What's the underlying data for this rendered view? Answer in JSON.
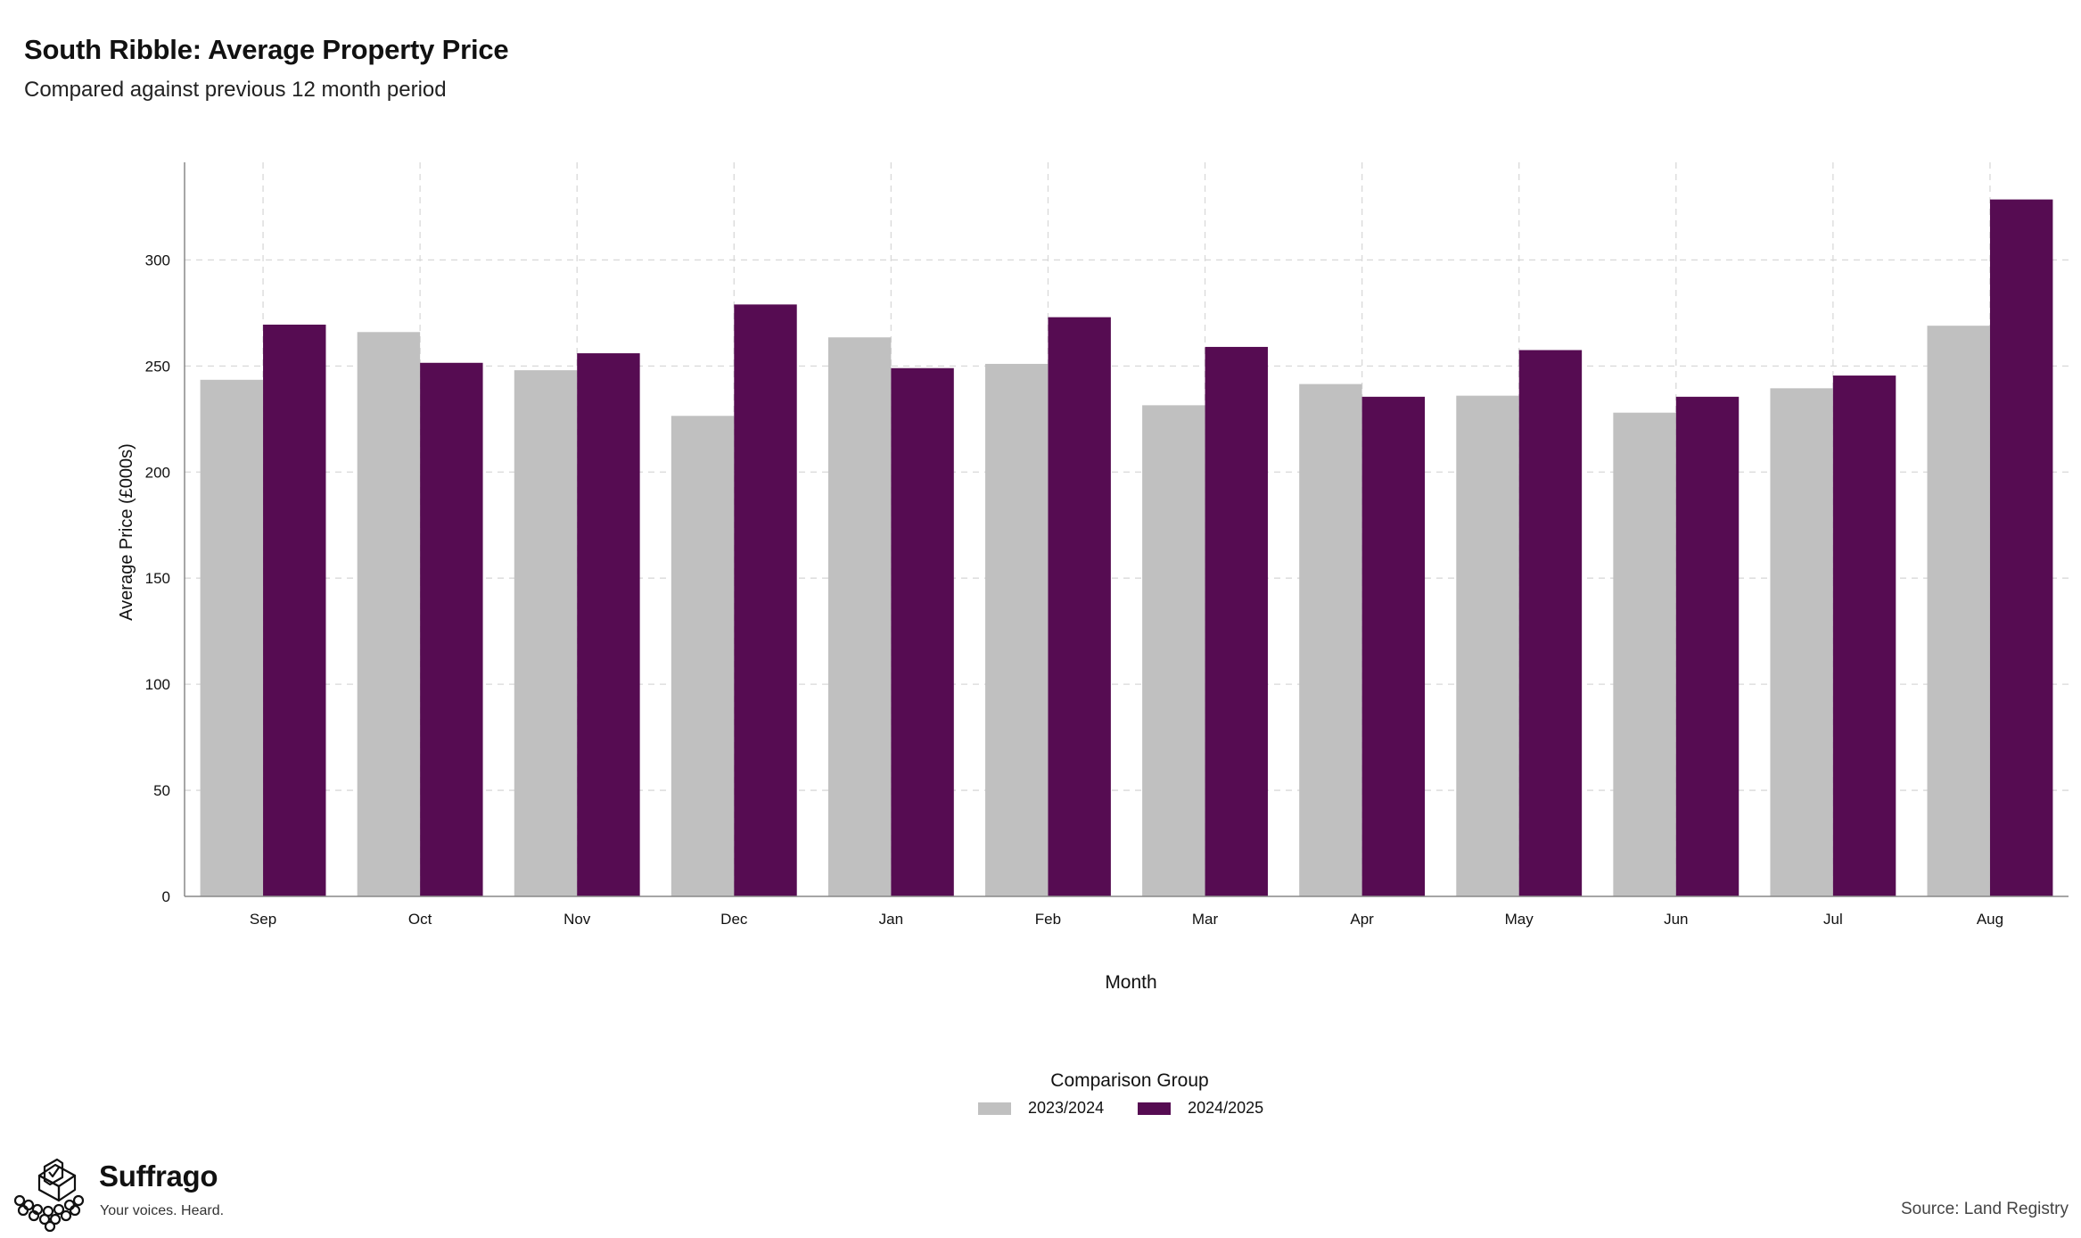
{
  "header": {
    "title": "South Ribble: Average Property Price",
    "subtitle": "Compared against previous 12 month period"
  },
  "legend": {
    "title": "Comparison Group",
    "items": [
      {
        "label": "2023/2024",
        "color": "#c0c0c0"
      },
      {
        "label": "2024/2025",
        "color": "#560c52"
      }
    ]
  },
  "footer": {
    "brand_name": "Suffrago",
    "brand_tagline": "Your voices. Heard.",
    "source": "Source: Land Registry"
  },
  "chart_data": {
    "type": "bar",
    "title": "South Ribble: Average Property Price",
    "subtitle": "Compared against previous 12 month period",
    "xlabel": "Month",
    "ylabel": "Average Price (£000s)",
    "categories": [
      "Sep",
      "Oct",
      "Nov",
      "Dec",
      "Jan",
      "Feb",
      "Mar",
      "Apr",
      "May",
      "Jun",
      "Jul",
      "Aug"
    ],
    "series": [
      {
        "name": "2023/2024",
        "color": "#c0c0c0",
        "values": [
          243.5,
          266,
          248,
          226.5,
          263.5,
          251,
          231.5,
          241.5,
          236,
          228,
          239.5,
          269
        ]
      },
      {
        "name": "2024/2025",
        "color": "#560c52",
        "values": [
          269.5,
          251.5,
          256,
          279,
          249,
          273,
          259,
          235.5,
          257.5,
          235.5,
          245.5,
          328.5
        ]
      }
    ],
    "yticks": [
      0,
      50,
      100,
      150,
      200,
      250,
      300
    ],
    "ylim": [
      0,
      346
    ],
    "grid": true,
    "legend_position": "bottom"
  }
}
